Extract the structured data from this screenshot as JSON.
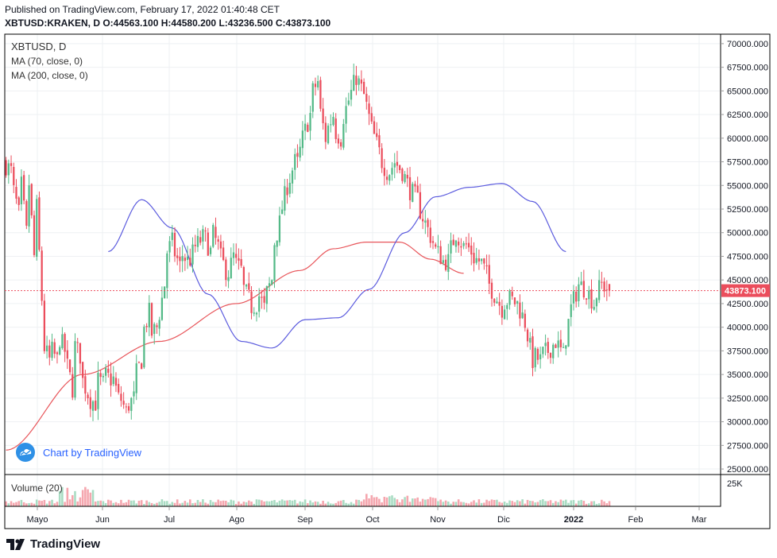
{
  "header": {
    "published": "Published on TradingView.com, February 17, 2022 01:40:48 CET",
    "symbol_line": "XBTUSD:KRAKEN, D O:44563.100 H:44580.200 L:43236.500 C:43873.100"
  },
  "legend": {
    "symbol": "XBTUSD, D",
    "ma70": "MA (70, close, 0)",
    "ma200": "MA (200, close, 0)",
    "volume": "Volume (20)"
  },
  "watermark": {
    "label": "Chart by TradingView"
  },
  "footer": {
    "brand": "TradingView"
  },
  "colors": {
    "up": "#53b987",
    "down": "#eb4d5c",
    "ma70": "#5b5bde",
    "ma200": "#e8555a",
    "price_tag": "#eb4d5c",
    "accent": "#2962ff"
  },
  "chart_data": {
    "type": "candlestick",
    "symbol": "XBTUSD:KRAKEN",
    "interval": "D",
    "last_bar": {
      "open": 44563.1,
      "high": 44580.2,
      "low": 43236.5,
      "close": 43873.1
    },
    "current_price_label": "43873.100",
    "y_axis": {
      "range": [
        24500,
        71000
      ],
      "ticks": [
        "70000.000",
        "67500.000",
        "65000.000",
        "62500.000",
        "60000.000",
        "57500.000",
        "55000.000",
        "52500.000",
        "50000.000",
        "47500.000",
        "45000.000",
        "42500.000",
        "40000.000",
        "37500.000",
        "35000.000",
        "32500.000",
        "30000.000",
        "27500.000",
        "25000.000"
      ]
    },
    "volume_axis": {
      "label": "25K"
    },
    "x_axis": {
      "labels": [
        "Mayo",
        "Jun",
        "Jul",
        "Ago",
        "Sep",
        "Oct",
        "Nov",
        "Dic",
        "2022",
        "Feb",
        "Mar"
      ]
    },
    "price_anchors": [
      [
        57500,
        56500
      ],
      [
        55500,
        52000
      ],
      [
        57500,
        50000
      ],
      [
        59000,
        47500
      ],
      [
        57500,
        43000
      ],
      [
        38500,
        36500
      ],
      [
        38000,
        36500
      ],
      [
        39500,
        37500
      ],
      [
        37000,
        33500
      ],
      [
        38500,
        37000
      ],
      [
        35000,
        33000
      ],
      [
        32500,
        32000
      ],
      [
        34500,
        34000
      ],
      [
        35000,
        34500
      ],
      [
        35500,
        32500
      ],
      [
        33000,
        31000
      ],
      [
        31500,
        32500
      ],
      [
        34500,
        36500
      ],
      [
        39000,
        41500
      ],
      [
        39000,
        40000
      ],
      [
        40000,
        44500
      ],
      [
        47500,
        49000
      ],
      [
        48500,
        46500
      ],
      [
        48000,
        47000
      ],
      [
        46500,
        48500
      ],
      [
        48500,
        49500
      ],
      [
        50000,
        48000
      ],
      [
        50500,
        48500
      ],
      [
        48000,
        46000
      ],
      [
        45000,
        47500
      ],
      [
        47000,
        46000
      ],
      [
        44500,
        43000
      ],
      [
        42000,
        42500
      ],
      [
        44000,
        42000
      ],
      [
        43000,
        45000
      ],
      [
        48000,
        51000
      ],
      [
        51500,
        55000
      ],
      [
        55000,
        57500
      ],
      [
        56000,
        60000
      ],
      [
        60000,
        62500
      ],
      [
        64500,
        66000
      ],
      [
        64000,
        60000
      ],
      [
        60500,
        62500
      ],
      [
        61000,
        60000
      ],
      [
        61500,
        64000
      ],
      [
        64000,
        66500
      ],
      [
        66500,
        64500
      ],
      [
        64500,
        61000
      ],
      [
        61000,
        58500
      ],
      [
        58000,
        56500
      ],
      [
        56000,
        57500
      ],
      [
        57500,
        56500
      ],
      [
        56500,
        54500
      ],
      [
        54500,
        53500
      ],
      [
        53000,
        51000
      ],
      [
        51000,
        49000
      ],
      [
        48500,
        47500
      ],
      [
        47000,
        47000
      ],
      [
        47500,
        50000
      ],
      [
        50000,
        48500
      ],
      [
        49000,
        48000
      ],
      [
        47500,
        47000
      ],
      [
        47500,
        45500
      ],
      [
        45000,
        43500
      ],
      [
        43500,
        42000
      ],
      [
        42500,
        43000
      ],
      [
        43000,
        42500
      ],
      [
        42500,
        40500
      ],
      [
        40500,
        36500
      ],
      [
        37000,
        36500
      ],
      [
        37000,
        37500
      ],
      [
        37500,
        38500
      ],
      [
        38500,
        37000
      ],
      [
        37500,
        42000
      ],
      [
        42000,
        44500
      ],
      [
        44500,
        44000
      ],
      [
        44000,
        42500
      ],
      [
        43000,
        44563
      ],
      [
        44563,
        43873
      ]
    ],
    "ma70_anchors": [
      [
        0,
        48000
      ],
      [
        13,
        53500
      ],
      [
        25,
        50500
      ],
      [
        39,
        43500
      ],
      [
        52,
        38500
      ],
      [
        64,
        37800
      ],
      [
        77,
        40800
      ],
      [
        90,
        41000
      ],
      [
        102,
        44000
      ],
      [
        116,
        50000
      ],
      [
        128,
        53800
      ],
      [
        141,
        54800
      ],
      [
        154,
        55200
      ],
      [
        166,
        53300
      ],
      [
        179,
        48000
      ]
    ],
    "ma200_anchors": [
      [
        0,
        27000
      ],
      [
        30,
        35000
      ],
      [
        60,
        38500
      ],
      [
        90,
        42500
      ],
      [
        115,
        46000
      ],
      [
        128,
        48300
      ],
      [
        141,
        49000
      ],
      [
        154,
        49000
      ],
      [
        166,
        47200
      ],
      [
        179,
        45700
      ]
    ]
  }
}
